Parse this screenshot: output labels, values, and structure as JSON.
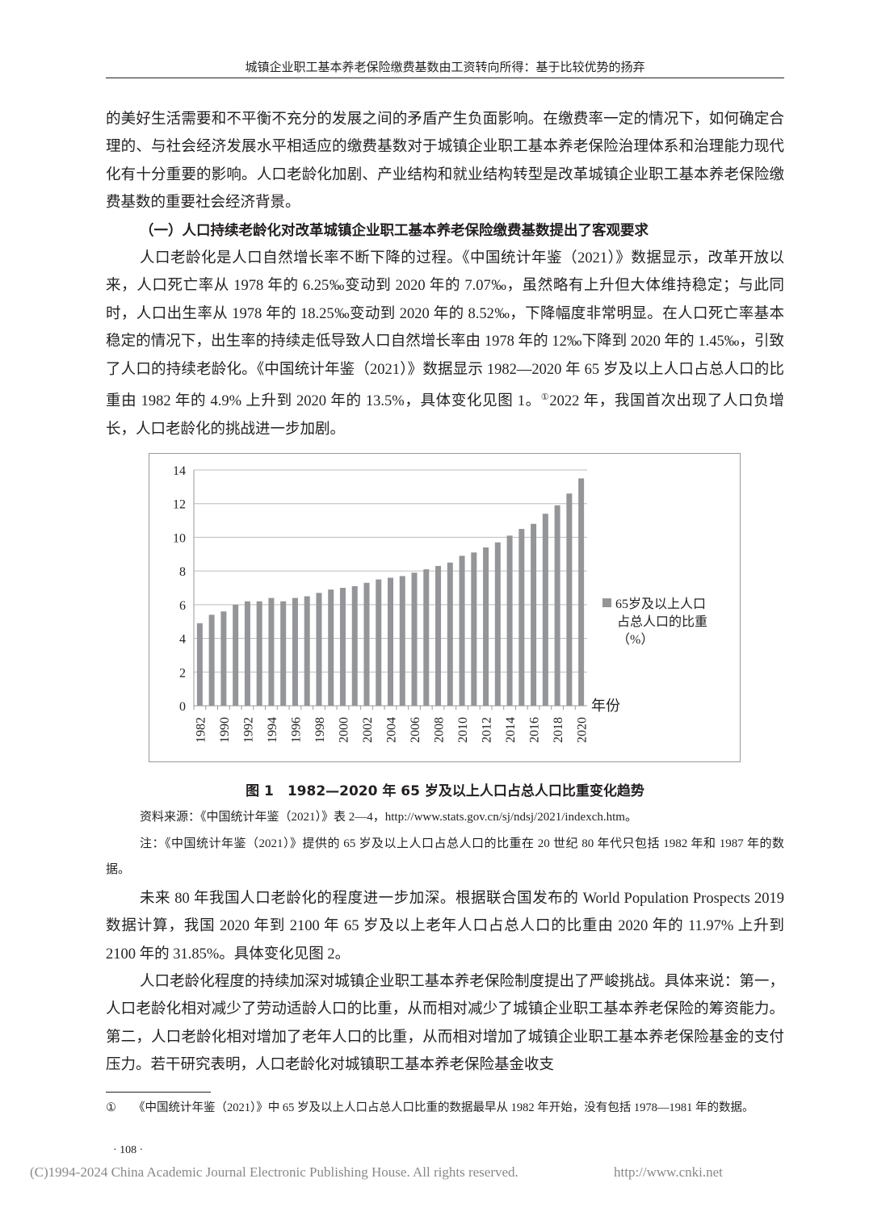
{
  "header": "城镇企业职工基本养老保险缴费基数由工资转向所得：基于比较优势的扬弃",
  "paragraphs": [
    "的美好生活需要和不平衡不充分的发展之间的矛盾产生负面影响。在缴费率一定的情况下，如何确定合理的、与社会经济发展水平相适应的缴费基数对于城镇企业职工基本养老保险治理体系和治理能力现代化有十分重要的影响。人口老龄化加剧、产业结构和就业结构转型是改革城镇企业职工基本养老保险缴费基数的重要社会经济背景。",
    "人口老龄化是人口自然增长率不断下降的过程。《中国统计年鉴（2021）》数据显示，改革开放以来，人口死亡率从 1978 年的 6.25‰变动到 2020 年的 7.07‰，虽然略有上升但大体维持稳定；与此同时，人口出生率从 1978 年的 18.25‰变动到 2020 年的 8.52‰，下降幅度非常明显。在人口死亡率基本稳定的情况下，出生率的持续走低导致人口自然增长率由 1978 年的 12‰下降到 2020 年的 1.45‰，引致了人口的持续老龄化。《中国统计年鉴（2021）》数据显示 1982—2020 年 65 岁及以上人口占总人口的比重由 1982 年的 4.9% 上升到 2020 年的 13.5%，具体变化见图 1。",
    "2022 年，我国首次出现了人口负增长，人口老龄化的挑战进一步加剧。",
    "未来 80 年我国人口老龄化的程度进一步加深。根据联合国发布的 World Population Prospects 2019 数据计算，我国 2020 年到 2100 年 65 岁及以上老年人口占总人口的比重由 2020 年的 11.97% 上升到 2100 年的 31.85%。具体变化见图 2。",
    "人口老龄化程度的持续加深对城镇企业职工基本养老保险制度提出了严峻挑战。具体来说：第一，人口老龄化相对减少了劳动适龄人口的比重，从而相对减少了城镇企业职工基本养老保险的筹资能力。第二，人口老龄化相对增加了老年人口的比重，从而相对增加了城镇企业职工基本养老保险基金的支付压力。若干研究表明，人口老龄化对城镇职工基本养老保险基金收支"
  ],
  "footnote_mark": "①",
  "section_heading": "（一）人口持续老龄化对改革城镇企业职工基本养老保险缴费基数提出了客观要求",
  "figure": {
    "caption": "图 1　1982—2020 年 65 岁及以上人口占总人口比重变化趋势",
    "source": "资料来源：《中国统计年鉴（2021）》表 2—4，http://www.stats.gov.cn/sj/ndsj/2021/indexch.htm。",
    "note": "注：《中国统计年鉴（2021）》提供的 65 岁及以上人口占总人口的比重在 20 世纪 80 年代只包括 1982 年和 1987 年的数据。"
  },
  "chart_data": {
    "type": "bar",
    "categories": [
      "1982",
      "1987",
      "1990",
      "1991",
      "1992",
      "1993",
      "1994",
      "1995",
      "1996",
      "1997",
      "1998",
      "1999",
      "2000",
      "2001",
      "2002",
      "2003",
      "2004",
      "2005",
      "2006",
      "2007",
      "2008",
      "2009",
      "2010",
      "2011",
      "2012",
      "2013",
      "2014",
      "2015",
      "2016",
      "2017",
      "2018",
      "2019",
      "2020"
    ],
    "tick_labels": [
      "1982",
      "1990",
      "1992",
      "1994",
      "1996",
      "1998",
      "2000",
      "2002",
      "2004",
      "2006",
      "2008",
      "2010",
      "2012",
      "2014",
      "2016",
      "2018",
      "2020"
    ],
    "series": [
      {
        "name": "65岁及以上人口占总人口的比重（%）",
        "values": [
          4.9,
          5.4,
          5.6,
          6.0,
          6.2,
          6.2,
          6.4,
          6.2,
          6.4,
          6.5,
          6.7,
          6.9,
          7.0,
          7.1,
          7.3,
          7.5,
          7.6,
          7.7,
          7.9,
          8.1,
          8.3,
          8.5,
          8.9,
          9.1,
          9.4,
          9.7,
          10.1,
          10.5,
          10.8,
          11.4,
          11.9,
          12.6,
          13.5
        ]
      }
    ],
    "legend_lines": [
      "65岁及以上人口",
      "占总人口的比重",
      "（%）"
    ],
    "xlabel": "年份",
    "ylim": [
      0,
      14
    ],
    "yticks": [
      0,
      2,
      4,
      6,
      8,
      10,
      12,
      14
    ],
    "grid": true,
    "legend": "right",
    "bar_color": "#939598"
  },
  "footnote": {
    "mark": "①",
    "text": "《中国统计年鉴（2021）》中 65 岁及以上人口占总人口比重的数据最早从 1982 年开始，没有包括 1978—1981 年的数据。"
  },
  "page_number": "· 108 ·",
  "watermark": "(C)1994-2024 China Academic Journal Electronic Publishing House. All rights reserved.",
  "watermark_url": "http://www.cnki.net"
}
